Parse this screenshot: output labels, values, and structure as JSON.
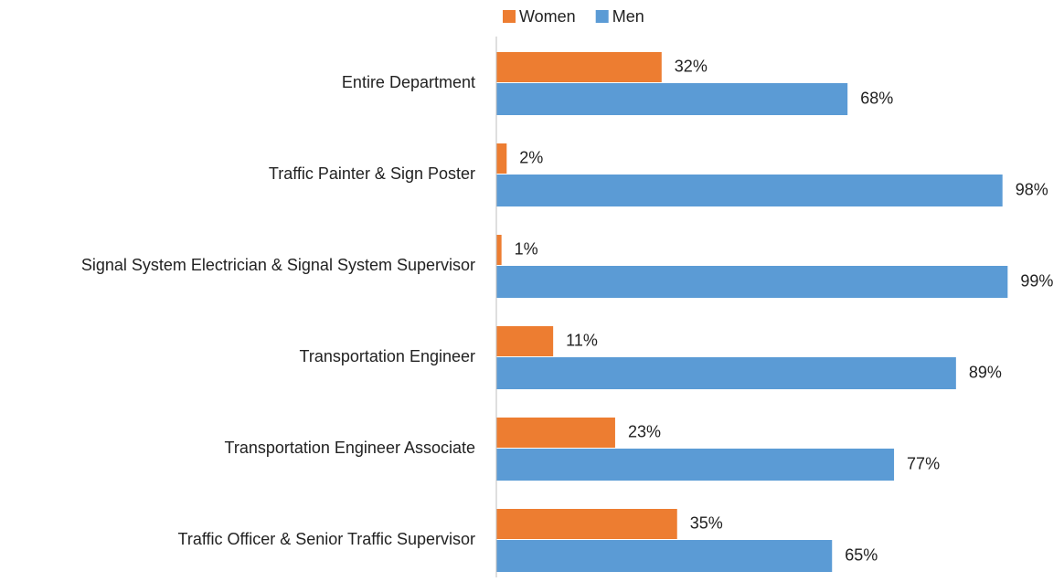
{
  "chart_data": {
    "type": "hbar",
    "categories": [
      "Entire Department",
      "Traffic Painter & Sign Poster",
      "Signal System Electrician & Signal System Supervisor",
      "Transportation Engineer",
      "Transportation Engineer Associate",
      "Traffic Officer & Senior Traffic Supervisor"
    ],
    "series": [
      {
        "name": "Women",
        "color": "#ed7d31",
        "values": [
          32,
          2,
          1,
          11,
          23,
          35
        ],
        "value_labels": [
          "32%",
          "2%",
          "1%",
          "11%",
          "23%",
          "35%"
        ]
      },
      {
        "name": "Men",
        "color": "#5b9bd5",
        "values": [
          68,
          98,
          99,
          89,
          77,
          65
        ],
        "value_labels": [
          "68%",
          "98%",
          "99%",
          "89%",
          "77%",
          "65%"
        ]
      }
    ],
    "xlim": [
      0,
      100
    ],
    "legend": "top"
  }
}
